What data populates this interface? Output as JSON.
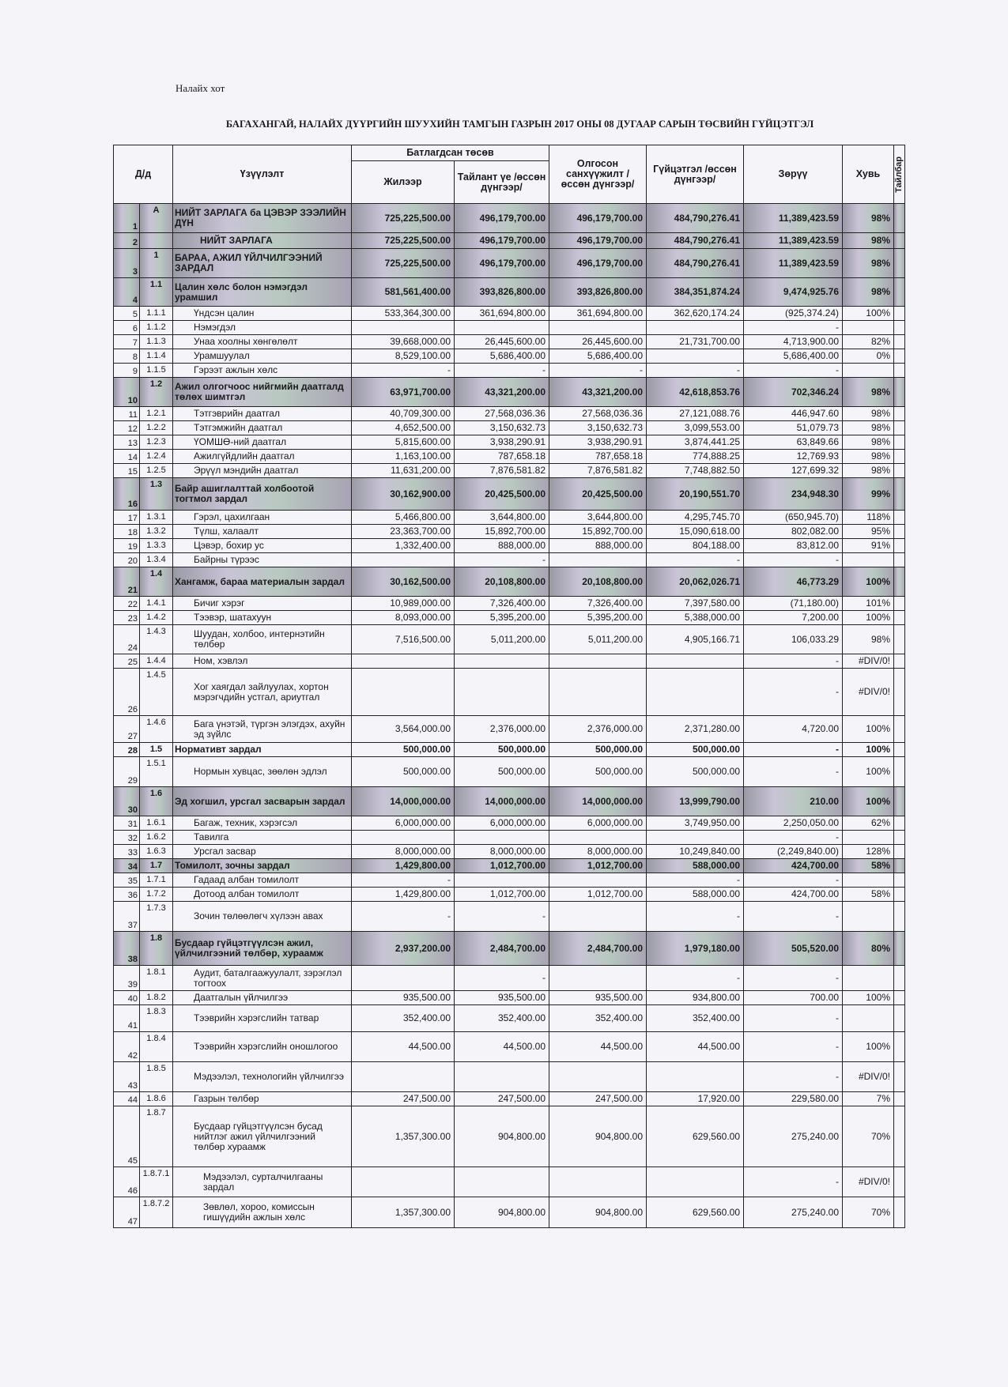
{
  "header": {
    "city": "Налайх хот",
    "title": "БАГАХАНГАЙ, НАЛАЙХ ДҮҮРГИЙН ШУУХИЙН ТАМГЫН ГАЗРЫН  2017 ОНЫ 08 ДУГААР САРЫН ТӨСВИЙН ГҮЙЦЭТГЭЛ"
  },
  "table": {
    "columns": {
      "no": "Д/д",
      "indicator": "Үзүүлэлт",
      "approved": "Батлагдсан төсөв",
      "annual": "Жилээр",
      "period": "Тайлант үе /өссөн дүнгээр/",
      "financed": "Олгосон санхүүжилт /өссөн дүнгээр/",
      "executed": "Гүйцэтгэл /өссөн дүнгээр/",
      "difference": "Зөрүү",
      "percent": "Хувь",
      "note": "Тайлбар"
    },
    "rows": [
      [
        "1",
        "А",
        "НИЙТ ЗАРЛАГА ба ЦЭВЭР ЗЭЭЛИЙН ДҮН",
        "725,225,500.00",
        "496,179,700.00",
        "496,179,700.00",
        "484,790,276.41",
        "11,389,423.59",
        "98%"
      ],
      [
        "2",
        null,
        "НИЙТ ЗАРЛАГА",
        "725,225,500.00",
        "496,179,700.00",
        "496,179,700.00",
        "484,790,276.41",
        "11,389,423.59",
        "98%"
      ],
      [
        "3",
        "1",
        "БАРАА, АЖИЛ ҮЙЛЧИЛГЭЭНИЙ ЗАРДАЛ",
        "725,225,500.00",
        "496,179,700.00",
        "496,179,700.00",
        "484,790,276.41",
        "11,389,423.59",
        "98%"
      ],
      [
        "4",
        "1.1",
        "Цалин хөлс болон нэмэгдэл урамшил",
        "581,561,400.00",
        "393,826,800.00",
        "393,826,800.00",
        "384,351,874.24",
        "9,474,925.76",
        "98%"
      ],
      [
        "5",
        "1.1.1",
        "Үндсэн цалин",
        "533,364,300.00",
        "361,694,800.00",
        "361,694,800.00",
        "362,620,174.24",
        "(925,374.24)",
        "100%"
      ],
      [
        "6",
        "1.1.2",
        "Нэмэгдэл",
        null,
        null,
        null,
        null,
        "-",
        null
      ],
      [
        "7",
        "1.1.3",
        "Унаа хоолны хөнгөлөлт",
        "39,668,000.00",
        "26,445,600.00",
        "26,445,600.00",
        "21,731,700.00",
        "4,713,900.00",
        "82%"
      ],
      [
        "8",
        "1.1.4",
        "Урамшуулал",
        "8,529,100.00",
        "5,686,400.00",
        "5,686,400.00",
        null,
        "5,686,400.00",
        "0%"
      ],
      [
        "9",
        "1.1.5",
        "Гэрээт ажлын хөлс",
        "-",
        "-",
        "-",
        "-",
        "-",
        null
      ],
      [
        "10",
        "1.2",
        "Ажил олгогчоос нийгмийн даатгалд төлөх шимтгэл",
        "63,971,700.00",
        "43,321,200.00",
        "43,321,200.00",
        "42,618,853.76",
        "702,346.24",
        "98%"
      ],
      [
        "11",
        "1.2.1",
        "Тэтгэврийн даатгал",
        "40,709,300.00",
        "27,568,036.36",
        "27,568,036.36",
        "27,121,088.76",
        "446,947.60",
        "98%"
      ],
      [
        "12",
        "1.2.2",
        "Тэтгэмжийн даатгал",
        "4,652,500.00",
        "3,150,632.73",
        "3,150,632.73",
        "3,099,553.00",
        "51,079.73",
        "98%"
      ],
      [
        "13",
        "1.2.3",
        "ҮОМШӨ-ний даатгал",
        "5,815,600.00",
        "3,938,290.91",
        "3,938,290.91",
        "3,874,441.25",
        "63,849.66",
        "98%"
      ],
      [
        "14",
        "1.2.4",
        "Ажилгүйдлийн даатгал",
        "1,163,100.00",
        "787,658.18",
        "787,658.18",
        "774,888.25",
        "12,769.93",
        "98%"
      ],
      [
        "15",
        "1.2.5",
        "Эрүүл мэндийн даатгал",
        "11,631,200.00",
        "7,876,581.82",
        "7,876,581.82",
        "7,748,882.50",
        "127,699.32",
        "98%"
      ],
      [
        "16",
        "1.3",
        "Байр ашиглалттай холбоотой тогтмол зардал",
        "30,162,900.00",
        "20,425,500.00",
        "20,425,500.00",
        "20,190,551.70",
        "234,948.30",
        "99%"
      ],
      [
        "17",
        "1.3.1",
        "Гэрэл, цахилгаан",
        "5,466,800.00",
        "3,644,800.00",
        "3,644,800.00",
        "4,295,745.70",
        "(650,945.70)",
        "118%"
      ],
      [
        "18",
        "1.3.2",
        "Түлш, халаалт",
        "23,363,700.00",
        "15,892,700.00",
        "15,892,700.00",
        "15,090,618.00",
        "802,082.00",
        "95%"
      ],
      [
        "19",
        "1.3.3",
        "Цэвэр, бохир ус",
        "1,332,400.00",
        "888,000.00",
        "888,000.00",
        "804,188.00",
        "83,812.00",
        "91%"
      ],
      [
        "20",
        "1.3.4",
        "Байрны түрээс",
        null,
        "-",
        null,
        "-",
        "-",
        null
      ],
      [
        "21",
        "1.4",
        "Хангамж, бараа материалын зардал",
        "30,162,500.00",
        "20,108,800.00",
        "20,108,800.00",
        "20,062,026.71",
        "46,773.29",
        "100%"
      ],
      [
        "22",
        "1.4.1",
        "Бичиг хэрэг",
        "10,989,000.00",
        "7,326,400.00",
        "7,326,400.00",
        "7,397,580.00",
        "(71,180.00)",
        "101%"
      ],
      [
        "23",
        "1.4.2",
        "Тээвэр, шатахуун",
        "8,093,000.00",
        "5,395,200.00",
        "5,395,200.00",
        "5,388,000.00",
        "7,200.00",
        "100%"
      ],
      [
        "24",
        "1.4.3",
        "Шуудан, холбоо, интернэтийн төлбөр",
        "7,516,500.00",
        "5,011,200.00",
        "5,011,200.00",
        "4,905,166.71",
        "106,033.29",
        "98%"
      ],
      [
        "25",
        "1.4.4",
        "Ном, хэвлэл",
        null,
        null,
        null,
        null,
        "-",
        "#DIV/0!"
      ],
      [
        "26",
        "1.4.5",
        "Хог хаягдал зайлуулах, хортон мэрэгчдийн устгал, ариутгал",
        null,
        null,
        null,
        null,
        "-",
        "#DIV/0!"
      ],
      [
        "27",
        "1.4.6",
        "Бага үнэтэй, түргэн элэгдэх, ахуйн эд зүйлс",
        "3,564,000.00",
        "2,376,000.00",
        "2,376,000.00",
        "2,371,280.00",
        "4,720.00",
        "100%"
      ],
      [
        "28",
        "1.5",
        "Нормативт зардал",
        "500,000.00",
        "500,000.00",
        "500,000.00",
        "500,000.00",
        "-",
        "100%"
      ],
      [
        "29",
        "1.5.1",
        "Нормын хувцас, зөөлөн эдлэл",
        "500,000.00",
        "500,000.00",
        "500,000.00",
        "500,000.00",
        "-",
        "100%"
      ],
      [
        "30",
        "1.6",
        "Эд хогшил, урсгал засварын зардал",
        "14,000,000.00",
        "14,000,000.00",
        "14,000,000.00",
        "13,999,790.00",
        "210.00",
        "100%"
      ],
      [
        "31",
        "1.6.1",
        "Багаж, техник, хэрэгсэл",
        "6,000,000.00",
        "6,000,000.00",
        "6,000,000.00",
        "3,749,950.00",
        "2,250,050.00",
        "62%"
      ],
      [
        "32",
        "1.6.2",
        "Тавилга",
        null,
        null,
        null,
        null,
        "-",
        null
      ],
      [
        "33",
        "1.6.3",
        "Урсгал засвар",
        "8,000,000.00",
        "8,000,000.00",
        "8,000,000.00",
        "10,249,840.00",
        "(2,249,840.00)",
        "128%"
      ],
      [
        "34",
        "1.7",
        "Томилолт, зочны зардал",
        "1,429,800.00",
        "1,012,700.00",
        "1,012,700.00",
        "588,000.00",
        "424,700.00",
        "58%"
      ],
      [
        "35",
        "1.7.1",
        "Гадаад албан томилолт",
        "-",
        null,
        null,
        "-",
        "-",
        null
      ],
      [
        "36",
        "1.7.2",
        "Дотоод албан томилолт",
        "1,429,800.00",
        "1,012,700.00",
        "1,012,700.00",
        "588,000.00",
        "424,700.00",
        "58%"
      ],
      [
        "37",
        "1.7.3",
        "Зочин төлөөлөгч хүлээн авах",
        "-",
        "-",
        null,
        "-",
        "-",
        null
      ],
      [
        "38",
        "1.8",
        "Бусдаар гүйцэтгүүлсэн ажил, үйлчилгээний төлбөр, хураамж",
        "2,937,200.00",
        "2,484,700.00",
        "2,484,700.00",
        "1,979,180.00",
        "505,520.00",
        "80%"
      ],
      [
        "39",
        "1.8.1",
        "Аудит, баталгаажуулалт, зэрэглэл тогтоох",
        null,
        "-",
        null,
        "-",
        "-",
        null
      ],
      [
        "40",
        "1.8.2",
        "Даатгалын үйлчилгээ",
        "935,500.00",
        "935,500.00",
        "935,500.00",
        "934,800.00",
        "700.00",
        "100%"
      ],
      [
        "41",
        "1.8.3",
        "Тээврийн хэрэгслийн татвар",
        "352,400.00",
        "352,400.00",
        "352,400.00",
        "352,400.00",
        "-",
        null
      ],
      [
        "42",
        "1.8.4",
        "Тээврийн хэрэгслийн оношлогоо",
        "44,500.00",
        "44,500.00",
        "44,500.00",
        "44,500.00",
        "-",
        "100%"
      ],
      [
        "43",
        "1.8.5",
        "Мэдээлэл, технологийн үйлчилгээ",
        null,
        null,
        null,
        null,
        "-",
        "#DIV/0!"
      ],
      [
        "44",
        "1.8.6",
        "Газрын төлбөр",
        "247,500.00",
        "247,500.00",
        "247,500.00",
        "17,920.00",
        "229,580.00",
        "7%"
      ],
      [
        "45",
        "1.8.7",
        "Бусдаар гүйцэтгүүлсэн бусад нийтлэг ажил үйлчилгээний төлбөр хураамж",
        "1,357,300.00",
        "904,800.00",
        "904,800.00",
        "629,560.00",
        "275,240.00",
        "70%"
      ],
      [
        "46",
        "1.8.7.1",
        "Мэдээлэл, сурталчилгааны зардал",
        null,
        null,
        null,
        null,
        "-",
        "#DIV/0!"
      ],
      [
        "47",
        "1.8.7.2",
        "Зөвлөл, хороо, комиссын гишүүдийн ажлын хөлс",
        "1,357,300.00",
        "904,800.00",
        "904,800.00",
        "629,560.00",
        "275,240.00",
        "70%"
      ]
    ]
  }
}
